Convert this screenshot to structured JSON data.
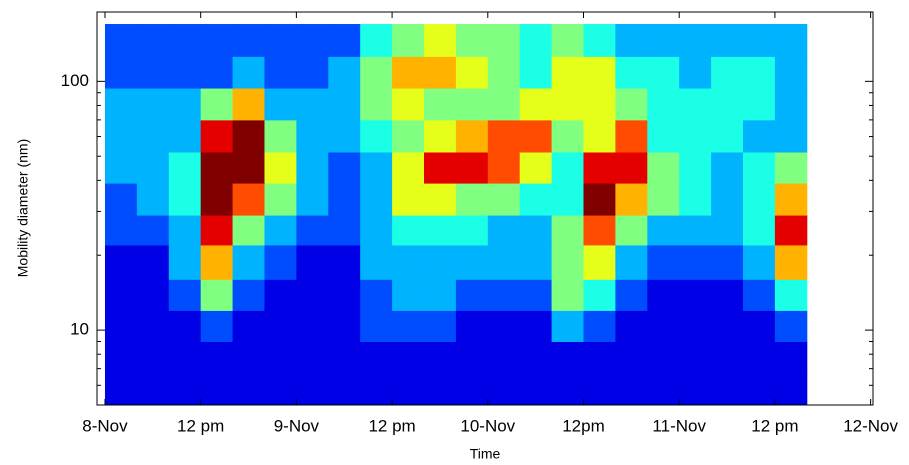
{
  "chart_data": {
    "type": "heatmap",
    "x_label": "Time",
    "y_label": "Mobility diameter (nm)",
    "xlim": [
      -1,
      96.3
    ],
    "xticks": [
      {
        "value": 0,
        "label": "8-Nov"
      },
      {
        "value": 12,
        "label": "12 pm"
      },
      {
        "value": 24,
        "label": "9-Nov"
      },
      {
        "value": 36,
        "label": "12 pm"
      },
      {
        "value": 48,
        "label": "10-Nov"
      },
      {
        "value": 60,
        "label": "12pm"
      },
      {
        "value": 72,
        "label": "11-Nov"
      },
      {
        "value": 84,
        "label": "12 pm"
      },
      {
        "value": 96,
        "label": "12-Nov"
      }
    ],
    "ylim": [
      5,
      190
    ],
    "y_scale": "log",
    "yticks": [
      10,
      100
    ],
    "yminorticks": [
      6,
      7,
      8,
      9,
      20,
      30,
      40,
      50,
      60,
      70,
      80,
      90
    ],
    "x_bins": [
      0,
      4,
      8,
      12,
      16,
      20,
      24,
      28,
      32,
      36,
      40,
      44,
      48,
      52,
      56,
      60,
      64,
      68,
      72,
      76,
      80,
      84,
      88
    ],
    "y_bins": [
      5,
      7,
      9,
      12,
      16,
      22,
      29,
      39,
      52,
      70,
      94,
      126,
      170
    ],
    "zlim": [
      0,
      10
    ],
    "colormap": "jet",
    "z": [
      [
        1,
        1,
        1,
        1,
        1,
        1,
        1,
        1,
        1,
        1,
        1,
        1,
        1,
        1,
        1,
        1,
        1,
        1,
        1,
        1,
        1,
        1
      ],
      [
        1,
        1,
        1,
        1,
        1,
        1,
        1,
        1,
        1,
        1,
        1,
        1,
        1,
        1,
        1,
        1,
        1,
        1,
        1,
        1,
        1,
        1
      ],
      [
        1,
        1,
        1,
        2,
        1,
        1,
        1,
        1,
        2,
        2,
        2,
        1,
        1,
        1,
        3,
        2,
        1,
        1,
        1,
        1,
        1,
        2
      ],
      [
        1,
        1,
        2,
        5,
        2,
        1,
        1,
        1,
        2,
        3,
        3,
        2,
        2,
        2,
        5,
        4,
        2,
        1,
        1,
        1,
        2,
        4
      ],
      [
        1,
        1,
        3,
        7,
        3,
        2,
        1,
        1,
        3,
        3,
        3,
        3,
        3,
        3,
        5,
        6,
        3,
        2,
        2,
        2,
        3,
        7
      ],
      [
        2,
        2,
        3,
        9,
        5,
        3,
        2,
        2,
        3,
        4,
        4,
        4,
        3,
        3,
        5,
        8,
        5,
        3,
        3,
        3,
        4,
        9
      ],
      [
        2,
        3,
        4,
        10,
        8,
        5,
        3,
        2,
        3,
        6,
        6,
        5,
        5,
        4,
        4,
        10,
        7,
        5,
        4,
        3,
        4,
        7
      ],
      [
        3,
        3,
        4,
        10,
        10,
        6,
        3,
        2,
        3,
        6,
        9,
        9,
        8,
        6,
        4,
        9,
        9,
        5,
        4,
        3,
        4,
        5
      ],
      [
        3,
        3,
        3,
        9,
        10,
        5,
        3,
        3,
        4,
        5,
        6,
        7,
        8,
        8,
        5,
        6,
        8,
        4,
        4,
        4,
        3,
        3
      ],
      [
        3,
        3,
        3,
        5,
        7,
        3,
        3,
        3,
        5,
        6,
        5,
        5,
        5,
        6,
        6,
        6,
        5,
        4,
        4,
        4,
        4,
        3
      ],
      [
        2,
        2,
        2,
        2,
        3,
        2,
        2,
        3,
        5,
        7,
        7,
        6,
        5,
        4,
        6,
        6,
        4,
        4,
        3,
        4,
        4,
        3
      ],
      [
        2,
        2,
        2,
        2,
        2,
        2,
        2,
        2,
        4,
        5,
        6,
        5,
        5,
        4,
        5,
        4,
        3,
        3,
        3,
        3,
        3,
        3
      ]
    ]
  }
}
